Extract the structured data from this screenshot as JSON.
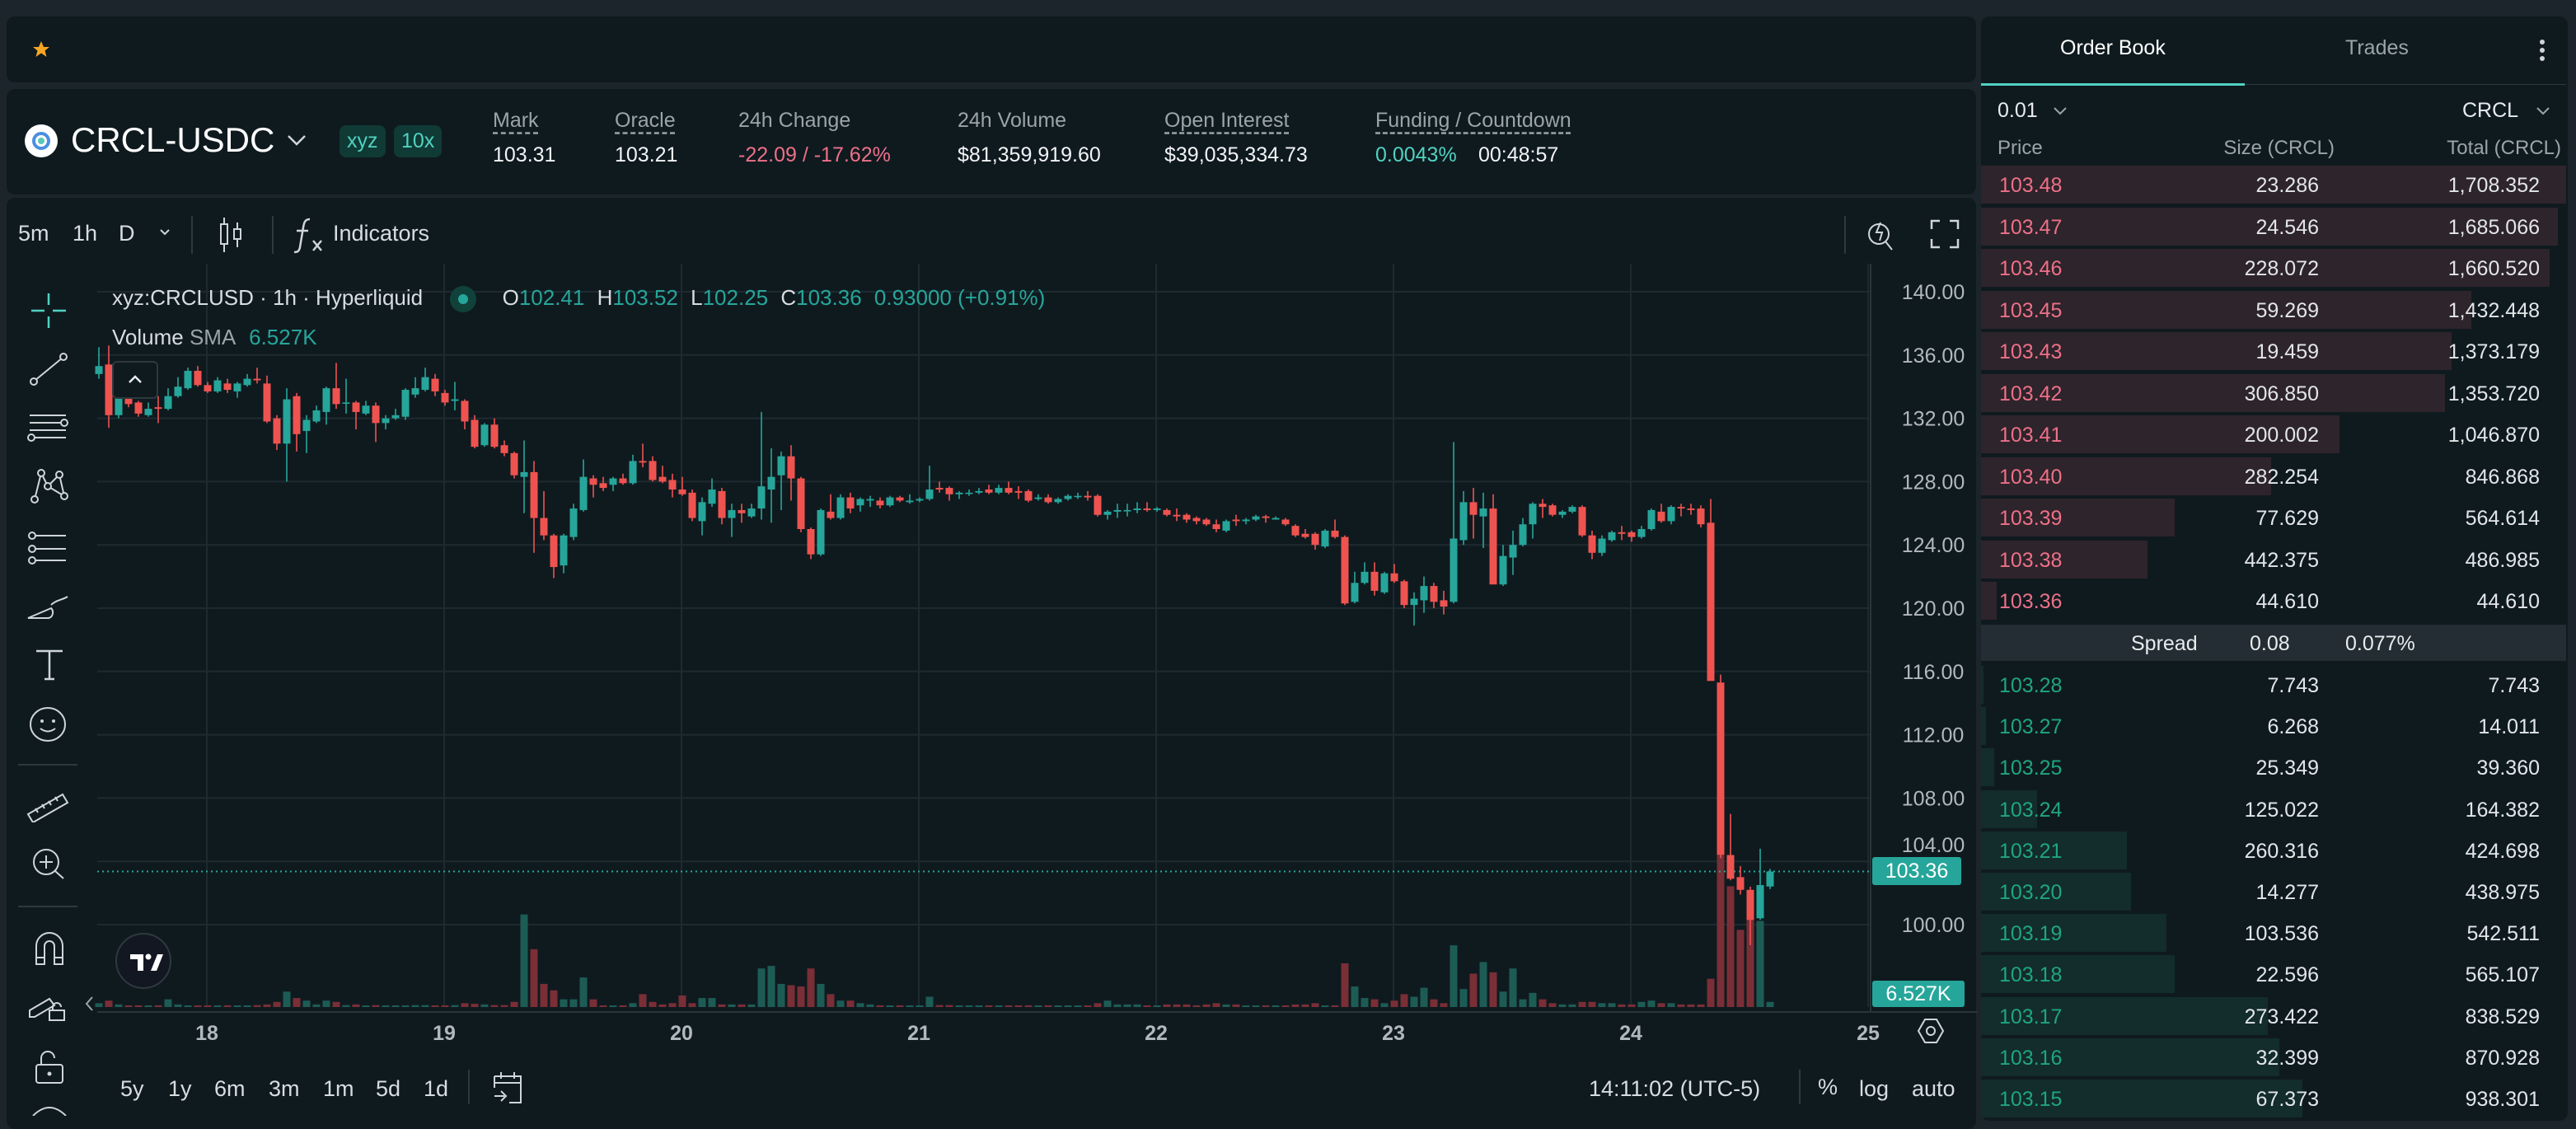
{
  "favorites": {
    "icon": "star-icon",
    "color": "#f5a623"
  },
  "market": {
    "pair": "CRCL-USDC",
    "badges": [
      "xyz",
      "10x"
    ],
    "stats": [
      {
        "label": "Mark",
        "value": "103.31"
      },
      {
        "label": "Oracle",
        "value": "103.21"
      },
      {
        "label": "24h Change",
        "value": "-22.09 / -17.62%"
      },
      {
        "label": "24h Volume",
        "value": "$81,359,919.60"
      },
      {
        "label": "Open Interest",
        "value": "$39,035,334.73"
      },
      {
        "label": "Funding / Countdown",
        "value": "0.0043%",
        "value2": "00:48:57"
      }
    ]
  },
  "chart_toolbar": {
    "intervals": [
      "5m",
      "1h",
      "D"
    ],
    "active_interval": "1h",
    "indicators_label": "Indicators"
  },
  "legend": {
    "symbol": "xyz:CRCLUSD · 1h · Hyperliquid",
    "o_label": "O",
    "o": "102.41",
    "h_label": "H",
    "h": "103.52",
    "l_label": "L",
    "l": "102.25",
    "c_label": "C",
    "c": "103.36",
    "change": "0.93000 (+0.91%)",
    "volume_label": "Volume",
    "sma_label": "SMA",
    "sma_value": "6.527K"
  },
  "price_axis": {
    "current_price": "103.36",
    "volume_sma": "6.527K"
  },
  "range_bar": {
    "ranges": [
      "5y",
      "1y",
      "6m",
      "3m",
      "1m",
      "5d",
      "1d"
    ],
    "time": "14:11:02 (UTC-5)",
    "percent": "%",
    "log": "log",
    "auto": "auto"
  },
  "chart_data": {
    "type": "candlestick",
    "interval": "1h",
    "ylim": [
      98,
      141
    ],
    "y_ticks": [
      "100.00",
      "104.00",
      "108.00",
      "112.00",
      "116.00",
      "120.00",
      "124.00",
      "128.00",
      "132.00",
      "136.00",
      "140.00"
    ],
    "x_ticks": [
      "18",
      "19",
      "20",
      "21",
      "22",
      "23",
      "24",
      "25"
    ],
    "grid": true,
    "colors": {
      "up": "#26a69a",
      "down": "#ef5350",
      "up_volume": "#1d5c55",
      "down_volume": "#7a2e36"
    },
    "candles_ohlcv": [
      [
        134.8,
        136.5,
        134.5,
        135.3,
        3
      ],
      [
        135.4,
        136.6,
        131.4,
        132.2,
        5
      ],
      [
        132.2,
        133.6,
        132.0,
        133.3,
        2
      ],
      [
        133.3,
        133.6,
        132.7,
        132.9,
        1
      ],
      [
        133.0,
        133.1,
        132.1,
        132.3,
        1
      ],
      [
        132.2,
        133.0,
        132.1,
        132.6,
        1
      ],
      [
        132.7,
        133.4,
        131.7,
        132.6,
        1
      ],
      [
        132.6,
        133.9,
        132.5,
        133.4,
        6
      ],
      [
        133.4,
        134.6,
        133.3,
        134.0,
        2
      ],
      [
        133.9,
        135.2,
        133.8,
        135.0,
        1
      ],
      [
        135.0,
        135.3,
        134.0,
        134.1,
        0.5
      ],
      [
        134.1,
        134.3,
        133.6,
        133.7,
        1
      ],
      [
        133.7,
        134.6,
        133.6,
        134.4,
        1
      ],
      [
        134.2,
        134.5,
        133.6,
        133.8,
        1
      ],
      [
        133.7,
        134.3,
        133.3,
        134.2,
        1
      ],
      [
        134.1,
        134.8,
        134.0,
        134.5,
        1
      ],
      [
        134.5,
        135.2,
        134.2,
        134.4,
        1.5
      ],
      [
        134.2,
        134.7,
        131.7,
        131.8,
        2
      ],
      [
        132.0,
        132.2,
        130.0,
        130.4,
        4
      ],
      [
        130.4,
        133.9,
        128.0,
        133.2,
        12
      ],
      [
        133.4,
        133.6,
        129.9,
        131.0,
        7
      ],
      [
        131.2,
        132.2,
        129.8,
        131.9,
        5
      ],
      [
        131.8,
        132.8,
        131.7,
        132.5,
        2
      ],
      [
        132.4,
        134.0,
        131.6,
        133.9,
        5
      ],
      [
        133.9,
        135.5,
        132.6,
        132.9,
        4
      ],
      [
        133.0,
        134.5,
        132.3,
        133.0,
        1.5
      ],
      [
        133.0,
        133.1,
        131.3,
        132.4,
        2
      ],
      [
        132.3,
        133.1,
        132.2,
        132.8,
        1
      ],
      [
        132.8,
        133.0,
        130.5,
        131.7,
        1.5
      ],
      [
        131.7,
        132.2,
        131.3,
        132.0,
        1
      ],
      [
        132.0,
        132.6,
        131.9,
        132.2,
        1
      ],
      [
        132.1,
        133.9,
        131.9,
        133.8,
        1
      ],
      [
        133.5,
        134.6,
        133.3,
        133.9,
        1.5
      ],
      [
        133.8,
        135.2,
        133.7,
        134.6,
        1.5
      ],
      [
        134.5,
        134.8,
        133.4,
        133.7,
        1
      ],
      [
        133.6,
        133.8,
        132.8,
        133.0,
        1
      ],
      [
        133.1,
        134.3,
        132.5,
        133.2,
        1.5
      ],
      [
        133.1,
        133.2,
        131.3,
        131.8,
        3
      ],
      [
        131.9,
        132.2,
        130.1,
        130.2,
        2.5
      ],
      [
        130.3,
        131.7,
        130.2,
        131.6,
        2
      ],
      [
        131.6,
        132.0,
        130.1,
        130.2,
        1.5
      ],
      [
        130.3,
        130.6,
        129.6,
        129.8,
        1.5
      ],
      [
        129.8,
        129.9,
        128.2,
        128.4,
        4
      ],
      [
        128.3,
        130.6,
        126.0,
        128.6,
        72
      ],
      [
        128.6,
        129.3,
        123.5,
        125.7,
        45
      ],
      [
        125.7,
        127.4,
        124.3,
        124.6,
        18
      ],
      [
        124.6,
        124.7,
        121.9,
        122.6,
        13
      ],
      [
        122.7,
        124.7,
        122.2,
        124.6,
        6
      ],
      [
        124.5,
        126.6,
        124.3,
        126.3,
        6
      ],
      [
        126.2,
        129.4,
        126.1,
        128.3,
        23
      ],
      [
        128.2,
        128.4,
        127.0,
        127.8,
        6
      ],
      [
        127.9,
        128.3,
        127.4,
        127.6,
        1
      ],
      [
        127.8,
        128.3,
        127.4,
        128.2,
        1
      ],
      [
        128.2,
        128.5,
        127.8,
        127.9,
        1
      ],
      [
        127.9,
        129.7,
        127.8,
        129.3,
        3
      ],
      [
        129.3,
        130.4,
        128.9,
        129.2,
        10
      ],
      [
        129.3,
        129.6,
        128.0,
        128.1,
        4
      ],
      [
        128.3,
        129.0,
        127.9,
        128.0,
        2
      ],
      [
        128.1,
        128.5,
        127.0,
        127.5,
        3
      ],
      [
        127.5,
        128.3,
        127.1,
        127.2,
        9
      ],
      [
        127.3,
        127.5,
        125.5,
        125.7,
        3
      ],
      [
        125.5,
        127.0,
        124.6,
        126.7,
        7
      ],
      [
        126.6,
        128.2,
        126.4,
        127.5,
        7
      ],
      [
        127.4,
        127.6,
        125.3,
        125.7,
        2
      ],
      [
        125.7,
        126.6,
        124.5,
        126.2,
        2
      ],
      [
        126.2,
        126.6,
        125.4,
        126.0,
        2
      ],
      [
        125.8,
        126.6,
        125.7,
        126.3,
        2
      ],
      [
        126.3,
        132.4,
        125.6,
        127.7,
        30
      ],
      [
        127.5,
        130.1,
        125.4,
        128.3,
        32
      ],
      [
        128.4,
        129.9,
        126.2,
        129.6,
        18
      ],
      [
        129.6,
        130.3,
        126.8,
        128.2,
        17
      ],
      [
        128.2,
        128.3,
        124.8,
        125.0,
        16
      ],
      [
        125.0,
        125.1,
        123.1,
        123.4,
        30
      ],
      [
        123.4,
        126.3,
        123.3,
        126.2,
        18
      ],
      [
        126.1,
        127.2,
        125.6,
        125.7,
        10
      ],
      [
        125.7,
        127.2,
        125.6,
        127.0,
        5
      ],
      [
        127.0,
        127.3,
        126.0,
        126.3,
        5
      ],
      [
        126.5,
        127.0,
        126.1,
        126.9,
        3
      ],
      [
        126.8,
        127.1,
        126.4,
        126.9,
        2
      ],
      [
        126.8,
        127.0,
        126.3,
        126.5,
        1
      ],
      [
        126.5,
        127.1,
        126.4,
        127.0,
        1
      ],
      [
        127.0,
        127.1,
        126.7,
        126.8,
        0.5
      ],
      [
        126.7,
        127.2,
        126.6,
        126.8,
        1
      ],
      [
        126.8,
        127.0,
        126.7,
        126.9,
        0.5
      ],
      [
        126.9,
        129.0,
        126.8,
        127.5,
        8
      ],
      [
        127.6,
        128.0,
        127.3,
        127.5,
        1.5
      ],
      [
        127.6,
        127.7,
        126.8,
        127.2,
        1.5
      ],
      [
        127.2,
        127.4,
        126.9,
        127.3,
        0.5
      ],
      [
        127.3,
        127.5,
        127.1,
        127.3,
        0.5
      ],
      [
        127.3,
        127.6,
        127.2,
        127.4,
        0.5
      ],
      [
        127.5,
        127.8,
        127.2,
        127.3,
        0.5
      ],
      [
        127.3,
        127.8,
        127.2,
        127.6,
        0.5
      ],
      [
        127.6,
        128.0,
        127.2,
        127.3,
        1
      ],
      [
        127.4,
        127.7,
        126.9,
        127.3,
        1
      ],
      [
        127.4,
        127.5,
        126.7,
        126.8,
        1
      ],
      [
        126.9,
        127.2,
        126.8,
        127.0,
        0.5
      ],
      [
        127.0,
        127.2,
        126.6,
        126.7,
        1
      ],
      [
        126.7,
        127.0,
        126.6,
        126.9,
        0.5
      ],
      [
        126.9,
        127.2,
        126.8,
        127.1,
        0.5
      ],
      [
        127.1,
        127.3,
        126.9,
        127.1,
        0.5
      ],
      [
        127.1,
        127.4,
        126.8,
        127.0,
        1
      ],
      [
        127.1,
        127.2,
        125.8,
        125.9,
        3
      ],
      [
        125.9,
        126.2,
        125.6,
        126.1,
        5
      ],
      [
        126.1,
        126.6,
        125.7,
        126.2,
        2
      ],
      [
        126.2,
        126.6,
        125.8,
        126.2,
        2
      ],
      [
        126.2,
        126.7,
        126.0,
        126.3,
        2
      ],
      [
        126.3,
        126.7,
        126.1,
        126.2,
        0.5
      ],
      [
        126.2,
        126.4,
        126.1,
        126.3,
        0.5
      ],
      [
        126.2,
        126.3,
        125.8,
        125.9,
        2
      ],
      [
        125.9,
        126.3,
        125.5,
        125.8,
        2
      ],
      [
        125.9,
        126.0,
        125.4,
        125.6,
        2
      ],
      [
        125.7,
        125.8,
        125.3,
        125.5,
        1
      ],
      [
        125.6,
        125.7,
        125.2,
        125.3,
        2
      ],
      [
        125.3,
        125.6,
        124.8,
        125.0,
        3
      ],
      [
        124.9,
        125.6,
        124.8,
        125.5,
        2
      ],
      [
        125.6,
        125.9,
        125.2,
        125.5,
        2
      ],
      [
        125.5,
        125.7,
        125.3,
        125.6,
        0.5
      ],
      [
        125.6,
        125.9,
        125.5,
        125.8,
        0.5
      ],
      [
        125.8,
        125.9,
        125.4,
        125.7,
        0.5
      ],
      [
        125.6,
        125.8,
        125.6,
        125.7,
        0.5
      ],
      [
        125.6,
        125.7,
        125.2,
        125.3,
        1
      ],
      [
        125.2,
        125.3,
        124.5,
        124.6,
        2
      ],
      [
        124.7,
        125.0,
        124.4,
        124.5,
        2
      ],
      [
        124.7,
        124.8,
        123.7,
        124.0,
        3
      ],
      [
        123.9,
        125.0,
        123.8,
        124.9,
        1
      ],
      [
        124.9,
        125.6,
        124.4,
        124.5,
        1
      ],
      [
        124.5,
        124.6,
        120.2,
        120.3,
        34
      ],
      [
        120.4,
        122.3,
        120.3,
        121.6,
        16
      ],
      [
        121.6,
        122.9,
        121.5,
        122.3,
        7
      ],
      [
        122.3,
        122.9,
        120.8,
        121.1,
        6
      ],
      [
        121.0,
        122.3,
        120.9,
        122.2,
        3
      ],
      [
        122.2,
        122.8,
        121.6,
        121.7,
        5
      ],
      [
        121.7,
        121.8,
        120.0,
        120.2,
        10
      ],
      [
        120.2,
        121.0,
        118.9,
        120.6,
        8
      ],
      [
        120.5,
        122.0,
        119.7,
        121.4,
        15
      ],
      [
        121.4,
        121.6,
        120.0,
        120.4,
        6
      ],
      [
        120.5,
        121.1,
        119.6,
        120.1,
        3
      ],
      [
        120.4,
        130.5,
        120.3,
        124.4,
        48
      ],
      [
        124.3,
        127.4,
        124.0,
        126.7,
        14
      ],
      [
        126.7,
        127.6,
        124.4,
        125.9,
        26
      ],
      [
        125.8,
        127.3,
        123.8,
        126.3,
        35
      ],
      [
        126.3,
        127.2,
        121.5,
        121.5,
        27
      ],
      [
        121.5,
        124.0,
        121.4,
        123.3,
        12
      ],
      [
        123.2,
        124.9,
        122.1,
        124.0,
        30
      ],
      [
        124.0,
        125.7,
        123.9,
        125.3,
        6
      ],
      [
        125.3,
        126.7,
        124.4,
        126.6,
        11
      ],
      [
        126.6,
        126.9,
        125.7,
        126.4,
        6
      ],
      [
        126.5,
        126.6,
        125.8,
        125.9,
        3
      ],
      [
        125.9,
        126.2,
        125.7,
        126.1,
        2
      ],
      [
        126.1,
        126.5,
        126.0,
        126.4,
        2
      ],
      [
        126.4,
        126.5,
        124.5,
        124.6,
        4
      ],
      [
        124.6,
        124.9,
        123.1,
        123.5,
        4
      ],
      [
        123.5,
        124.6,
        123.3,
        124.4,
        3
      ],
      [
        124.3,
        124.9,
        124.2,
        124.8,
        3
      ],
      [
        124.8,
        125.2,
        124.3,
        124.7,
        2
      ],
      [
        124.8,
        124.9,
        124.2,
        124.5,
        2
      ],
      [
        124.5,
        125.2,
        124.4,
        125.0,
        4
      ],
      [
        125.0,
        126.3,
        124.9,
        126.2,
        5
      ],
      [
        126.1,
        126.6,
        125.4,
        125.5,
        3
      ],
      [
        125.5,
        126.5,
        125.3,
        126.4,
        3
      ],
      [
        126.4,
        126.6,
        125.8,
        126.3,
        2
      ],
      [
        126.3,
        126.6,
        125.9,
        126.2,
        2
      ],
      [
        126.3,
        126.5,
        125.1,
        125.3,
        2
      ],
      [
        125.4,
        126.9,
        125.3,
        115.4,
        22
      ],
      [
        115.3,
        115.8,
        104.2,
        104.4,
        118
      ],
      [
        104.4,
        107.0,
        102.8,
        102.9,
        94
      ],
      [
        103.0,
        103.7,
        101.9,
        102.2,
        60
      ],
      [
        102.2,
        102.4,
        98.7,
        100.3,
        68
      ],
      [
        100.4,
        104.8,
        100.3,
        102.5,
        67
      ],
      [
        102.41,
        103.52,
        102.25,
        103.36,
        4
      ]
    ]
  },
  "order_book": {
    "tabs": [
      "Order Book",
      "Trades"
    ],
    "active_tab": "Order Book",
    "tick_size": "0.01",
    "unit": "CRCL",
    "headers": [
      "Price",
      "Size (CRCL)",
      "Total (CRCL)"
    ],
    "max_total": 1708.352,
    "asks": [
      [
        "103.48",
        "23.286",
        "1,708.352",
        1708.352
      ],
      [
        "103.47",
        "24.546",
        "1,685.066",
        1685.066
      ],
      [
        "103.46",
        "228.072",
        "1,660.520",
        1660.52
      ],
      [
        "103.45",
        "59.269",
        "1,432.448",
        1432.448
      ],
      [
        "103.43",
        "19.459",
        "1,373.179",
        1373.179
      ],
      [
        "103.42",
        "306.850",
        "1,353.720",
        1353.72
      ],
      [
        "103.41",
        "200.002",
        "1,046.870",
        1046.87
      ],
      [
        "103.40",
        "282.254",
        "846.868",
        846.868
      ],
      [
        "103.39",
        "77.629",
        "564.614",
        564.614
      ],
      [
        "103.38",
        "442.375",
        "486.985",
        486.985
      ],
      [
        "103.36",
        "44.610",
        "44.610",
        44.61
      ]
    ],
    "spread": {
      "label": "Spread",
      "value": "0.08",
      "percent": "0.077%"
    },
    "bids": [
      [
        "103.28",
        "7.743",
        "7.743",
        7.743
      ],
      [
        "103.27",
        "6.268",
        "14.011",
        14.011
      ],
      [
        "103.25",
        "25.349",
        "39.360",
        39.36
      ],
      [
        "103.24",
        "125.022",
        "164.382",
        164.382
      ],
      [
        "103.21",
        "260.316",
        "424.698",
        424.698
      ],
      [
        "103.20",
        "14.277",
        "438.975",
        438.975
      ],
      [
        "103.19",
        "103.536",
        "542.511",
        542.511
      ],
      [
        "103.18",
        "22.596",
        "565.107",
        565.107
      ],
      [
        "103.17",
        "273.422",
        "838.529",
        838.529
      ],
      [
        "103.16",
        "32.399",
        "870.928",
        870.928
      ],
      [
        "103.15",
        "67.373",
        "938.301",
        938.301
      ]
    ]
  }
}
